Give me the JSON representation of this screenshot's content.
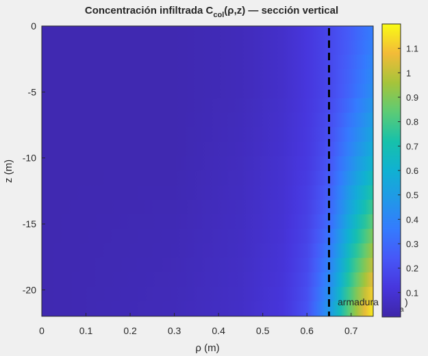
{
  "chart_data": {
    "type": "heatmap",
    "title": {
      "prefix": "Concentración infiltrada C",
      "subscript": "col",
      "suffix": "(ρ,z) — sección vertical"
    },
    "xlabel": "ρ (m)",
    "ylabel": "z (m)",
    "xlim": [
      0,
      0.75
    ],
    "ylim": [
      -22,
      0
    ],
    "x_ticks": [
      "0",
      "0.1",
      "0.2",
      "0.3",
      "0.4",
      "0.5",
      "0.6",
      "0.7"
    ],
    "x_tick_values": [
      0,
      0.1,
      0.2,
      0.3,
      0.4,
      0.5,
      0.6,
      0.7
    ],
    "y_ticks": [
      "0",
      "-5",
      "-10",
      "-15",
      "-20"
    ],
    "y_tick_values": [
      0,
      -5,
      -10,
      -15,
      -20
    ],
    "colorbar": {
      "colormap": "parula",
      "range": [
        0,
        1.2
      ],
      "ticks": [
        "0.1",
        "0.2",
        "0.3",
        "0.4",
        "0.5",
        "0.6",
        "0.7",
        "0.8",
        "0.9",
        "1",
        "1.1"
      ],
      "tick_values": [
        0.1,
        0.2,
        0.3,
        0.4,
        0.5,
        0.6,
        0.7,
        0.8,
        0.9,
        1.0,
        1.1
      ]
    },
    "field_samples": {
      "rho": [
        0,
        0.3,
        0.45,
        0.55,
        0.6,
        0.65,
        0.7,
        0.75
      ],
      "rows": [
        {
          "z": 0,
          "values": [
            0.02,
            0.02,
            0.04,
            0.08,
            0.12,
            0.18,
            0.26,
            0.36
          ]
        },
        {
          "z": -5,
          "values": [
            0.02,
            0.02,
            0.04,
            0.08,
            0.12,
            0.18,
            0.3,
            0.44
          ]
        },
        {
          "z": -10,
          "values": [
            0.02,
            0.02,
            0.05,
            0.09,
            0.13,
            0.22,
            0.42,
            0.6
          ]
        },
        {
          "z": -15,
          "values": [
            0.02,
            0.03,
            0.06,
            0.1,
            0.16,
            0.3,
            0.6,
            0.85
          ]
        },
        {
          "z": -22,
          "values": [
            0.02,
            0.04,
            0.07,
            0.12,
            0.22,
            0.48,
            0.9,
            1.2
          ]
        }
      ]
    },
    "reference_line": {
      "x": 0.65,
      "style": "dashed",
      "color": "#000000",
      "label_main": "armadura",
      "label_paren_close": ")",
      "label_subscript": "a"
    }
  }
}
